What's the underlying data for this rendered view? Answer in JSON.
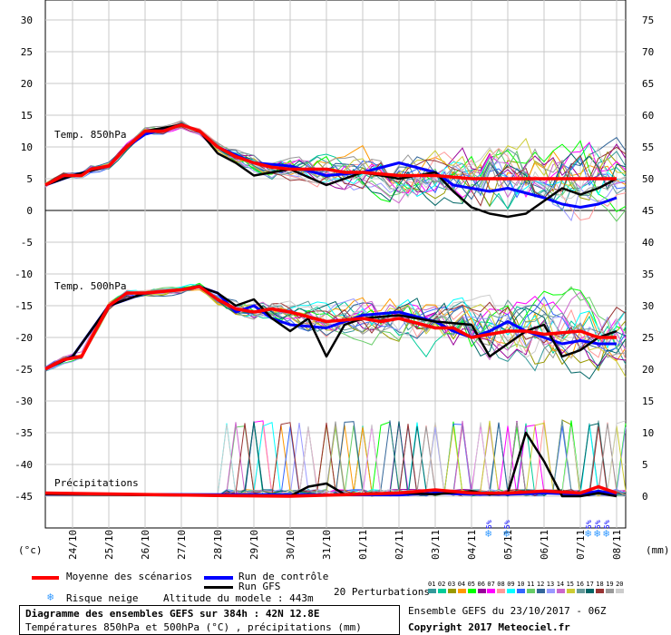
{
  "chart_data": {
    "type": "line",
    "x_dates": [
      "24/10",
      "25/10",
      "26/10",
      "27/10",
      "28/10",
      "29/10",
      "30/10",
      "31/10",
      "01/11",
      "02/11",
      "03/11",
      "04/11",
      "05/11",
      "06/11",
      "07/11",
      "08/11"
    ],
    "x_day_range": [
      23.25,
      39.25
    ],
    "left_axis": {
      "label": "(°c)",
      "ticks": [
        30,
        25,
        20,
        15,
        10,
        5,
        0,
        -5,
        -10,
        -15,
        -20,
        -25,
        -30,
        -35,
        -40,
        -45
      ]
    },
    "right_axis": {
      "label": "(mm)",
      "ticks": [
        75,
        70,
        65,
        60,
        55,
        50,
        45,
        40,
        35,
        30,
        25,
        20,
        15,
        10,
        5,
        0
      ]
    },
    "panels": [
      {
        "label": "Temp. 850hPa",
        "unit": "°C"
      },
      {
        "label": "Temp. 500hPa",
        "unit": "°C"
      },
      {
        "label": "Précipitations",
        "unit": "mm"
      }
    ],
    "series": [
      {
        "name": "Moyenne des scénarios",
        "color": "#ff0000",
        "t850": [
          [
            23.25,
            4
          ],
          [
            23.75,
            5.5
          ],
          [
            24.25,
            5.5
          ],
          [
            24.5,
            6.5
          ],
          [
            25,
            7
          ],
          [
            25.5,
            10
          ],
          [
            26,
            12.5
          ],
          [
            26.5,
            12.5
          ],
          [
            27,
            13.5
          ],
          [
            27.5,
            12.5
          ],
          [
            28,
            10
          ],
          [
            28.5,
            8.5
          ],
          [
            29,
            7.5
          ],
          [
            29.5,
            6.8
          ],
          [
            30,
            6.5
          ],
          [
            31,
            6.5
          ],
          [
            31.5,
            6
          ],
          [
            32,
            6
          ],
          [
            33,
            5.5
          ],
          [
            34,
            5.5
          ],
          [
            35,
            5
          ],
          [
            36,
            5
          ],
          [
            37,
            5
          ],
          [
            38,
            5
          ],
          [
            38.5,
            5
          ],
          [
            39,
            5
          ]
        ],
        "t500": [
          [
            23.25,
            -25
          ],
          [
            23.75,
            -23.5
          ],
          [
            24.25,
            -23
          ],
          [
            25,
            -15
          ],
          [
            25.5,
            -13
          ],
          [
            26,
            -13
          ],
          [
            27,
            -12.5
          ],
          [
            27.5,
            -12
          ],
          [
            28,
            -14
          ],
          [
            28.5,
            -15.5
          ],
          [
            29,
            -16
          ],
          [
            29.5,
            -15.5
          ],
          [
            30,
            -16
          ],
          [
            31,
            -17.5
          ],
          [
            32,
            -17
          ],
          [
            32.5,
            -17.5
          ],
          [
            33,
            -17
          ],
          [
            34,
            -18.5
          ],
          [
            34.5,
            -18.5
          ],
          [
            35,
            -20
          ],
          [
            35.5,
            -19.5
          ],
          [
            36,
            -19
          ],
          [
            36.5,
            -19
          ],
          [
            37,
            -19.5
          ],
          [
            38,
            -19
          ],
          [
            38.5,
            -20
          ],
          [
            39,
            -20
          ]
        ],
        "precip": [
          [
            23.25,
            0.5
          ],
          [
            28,
            0.1
          ],
          [
            30,
            0
          ],
          [
            33,
            0.5
          ],
          [
            34,
            1
          ],
          [
            35,
            0.5
          ],
          [
            36,
            0.5
          ],
          [
            37,
            0.8
          ],
          [
            38,
            0.5
          ],
          [
            38.5,
            1.5
          ],
          [
            39,
            0.5
          ]
        ]
      },
      {
        "name": "Run de contrôle",
        "color": "#0000ff",
        "t850": [
          [
            23.25,
            4
          ],
          [
            24,
            5.5
          ],
          [
            25,
            7
          ],
          [
            25.5,
            10
          ],
          [
            26,
            12
          ],
          [
            27,
            13.5
          ],
          [
            27.5,
            12.5
          ],
          [
            28,
            10
          ],
          [
            29,
            7.5
          ],
          [
            30,
            7
          ],
          [
            31,
            5.5
          ],
          [
            32,
            6
          ],
          [
            33,
            7.5
          ],
          [
            34,
            6
          ],
          [
            34.5,
            4
          ],
          [
            35,
            3.5
          ],
          [
            35.5,
            3
          ],
          [
            36,
            3.5
          ],
          [
            37,
            2
          ],
          [
            37.5,
            1
          ],
          [
            38,
            0.5
          ],
          [
            38.5,
            1
          ],
          [
            39,
            2
          ]
        ],
        "t500": [
          [
            23.25,
            -25
          ],
          [
            24,
            -23
          ],
          [
            25,
            -15
          ],
          [
            26,
            -13
          ],
          [
            27,
            -12.5
          ],
          [
            27.5,
            -12
          ],
          [
            28,
            -13
          ],
          [
            28.5,
            -16
          ],
          [
            29,
            -15
          ],
          [
            29.5,
            -17
          ],
          [
            30,
            -18
          ],
          [
            31,
            -18.5
          ],
          [
            32,
            -16.5
          ],
          [
            33,
            -16
          ],
          [
            34,
            -17.5
          ],
          [
            34.5,
            -19
          ],
          [
            35,
            -20
          ],
          [
            35.5,
            -19
          ],
          [
            36,
            -17.5
          ],
          [
            36.5,
            -19
          ],
          [
            37,
            -20
          ],
          [
            37.5,
            -21
          ],
          [
            38,
            -20.5
          ],
          [
            38.5,
            -21
          ],
          [
            39,
            -21
          ]
        ],
        "precip": [
          [
            23.25,
            0.3
          ],
          [
            33,
            0.2
          ],
          [
            34,
            0.5
          ],
          [
            35,
            0.3
          ],
          [
            36,
            0.3
          ],
          [
            37,
            0.5
          ],
          [
            38,
            0.3
          ],
          [
            38.5,
            0.8
          ],
          [
            39,
            0.3
          ]
        ]
      },
      {
        "name": "Run GFS",
        "color": "#000000",
        "t850": [
          [
            23.25,
            4
          ],
          [
            24,
            5.5
          ],
          [
            25,
            7
          ],
          [
            25.5,
            10
          ],
          [
            26,
            12.5
          ],
          [
            27,
            13.5
          ],
          [
            27.5,
            12.5
          ],
          [
            28,
            9
          ],
          [
            28.5,
            7.5
          ],
          [
            29,
            5.5
          ],
          [
            29.5,
            6
          ],
          [
            30,
            6.5
          ],
          [
            31,
            4
          ],
          [
            31.5,
            5
          ],
          [
            32,
            6
          ],
          [
            33,
            5
          ],
          [
            34,
            6
          ],
          [
            34.5,
            3
          ],
          [
            35,
            0.5
          ],
          [
            35.5,
            -0.5
          ],
          [
            36,
            -1
          ],
          [
            36.5,
            -0.5
          ],
          [
            37,
            1.5
          ],
          [
            37.5,
            3.5
          ],
          [
            38,
            2.5
          ],
          [
            38.5,
            3.5
          ],
          [
            39,
            5
          ]
        ],
        "t500": [
          [
            23.25,
            -25
          ],
          [
            24,
            -23
          ],
          [
            25,
            -15
          ],
          [
            26,
            -13
          ],
          [
            27,
            -12.5
          ],
          [
            27.5,
            -12
          ],
          [
            28,
            -13
          ],
          [
            28.5,
            -15
          ],
          [
            29,
            -14
          ],
          [
            29.5,
            -17
          ],
          [
            30,
            -19
          ],
          [
            30.5,
            -17
          ],
          [
            31,
            -23
          ],
          [
            31.5,
            -18
          ],
          [
            32,
            -17
          ],
          [
            33,
            -16.5
          ],
          [
            34,
            -17.5
          ],
          [
            35,
            -18
          ],
          [
            35.5,
            -23
          ],
          [
            36,
            -21
          ],
          [
            36.5,
            -19
          ],
          [
            37,
            -18
          ],
          [
            37.5,
            -23
          ],
          [
            38,
            -22
          ],
          [
            38.5,
            -20
          ],
          [
            39,
            -19
          ]
        ],
        "precip": [
          [
            23.25,
            0.3
          ],
          [
            30,
            0
          ],
          [
            30.5,
            1.5
          ],
          [
            31,
            2
          ],
          [
            31.5,
            0.3
          ],
          [
            33,
            0.5
          ],
          [
            34,
            0.3
          ],
          [
            35,
            0.8
          ],
          [
            35.5,
            0.3
          ],
          [
            36,
            0.5
          ],
          [
            36.5,
            10
          ],
          [
            37,
            5.5
          ],
          [
            37.5,
            0
          ],
          [
            38,
            0
          ],
          [
            38.5,
            0.5
          ],
          [
            39,
            0
          ]
        ]
      }
    ],
    "perturbation_colors": [
      "#339999",
      "#00cc99",
      "#999900",
      "#ff9900",
      "#00ff00",
      "#990099",
      "#ff00ff",
      "#ff9999",
      "#00ffff",
      "#3366ff",
      "#66cc66",
      "#336699",
      "#9999ff",
      "#cc66cc",
      "#cccc33",
      "#669999",
      "#006666",
      "#993333",
      "#999999",
      "#cccccc"
    ],
    "snow_risk": [
      {
        "x": 35.5,
        "label": "5%"
      },
      {
        "x": 36,
        "label": "5%"
      },
      {
        "x": 38.25,
        "label": "5%"
      },
      {
        "x": 38.5,
        "label": "5%"
      },
      {
        "x": 38.75,
        "label": "5%"
      }
    ],
    "grid": true
  },
  "legend": {
    "mean": "Moyenne des scénarios",
    "control": "Run de contrôle",
    "gfs": "Run GFS",
    "perturbations": "20 Perturbations",
    "perturbation_numbers": [
      "01",
      "02",
      "03",
      "04",
      "05",
      "06",
      "07",
      "08",
      "09",
      "10",
      "11",
      "12",
      "13",
      "14",
      "15",
      "16",
      "17",
      "18",
      "19",
      "20"
    ],
    "snow": "Risque neige",
    "altitude": "Altitude du modele : 443m"
  },
  "footer": {
    "title": "Diagramme des ensembles GEFS sur 384h : 42N 12.8E",
    "subtitle": "Températures 850hPa et 500hPa (°C) , précipitations (mm)",
    "run": "Ensemble GEFS du 23/10/2017 - 06Z",
    "copyright": "Copyright 2017 Meteociel.fr"
  }
}
